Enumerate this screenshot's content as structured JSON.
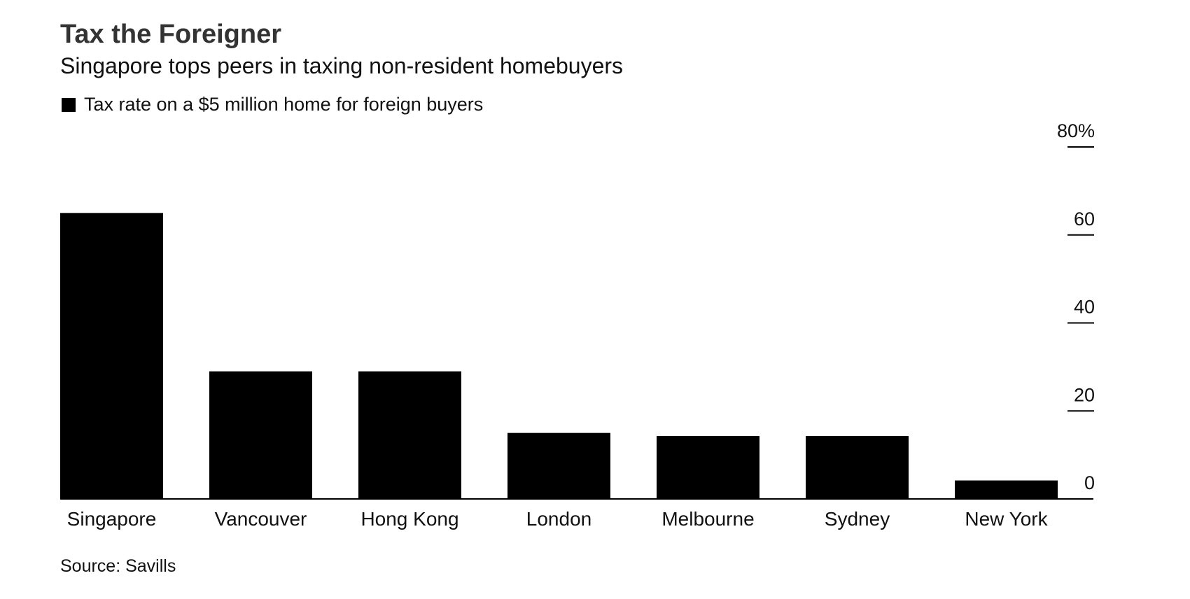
{
  "chart_data": {
    "type": "bar",
    "title": "Tax the Foreigner",
    "subtitle": "Singapore tops peers in taxing non-resident homebuyers",
    "legend": [
      {
        "name": "Tax rate on a $5 million home for foreign buyers",
        "color": "#000000"
      }
    ],
    "categories": [
      "Singapore",
      "Vancouver",
      "Hong Kong",
      "London",
      "Melbourne",
      "Sydney",
      "New York"
    ],
    "series": [
      {
        "name": "Tax rate on a $5 million home for foreign buyers",
        "values": [
          65,
          29,
          29,
          15,
          14.3,
          14.3,
          4.2
        ]
      }
    ],
    "xlabel": "",
    "ylabel": "",
    "ylim": [
      0,
      80
    ],
    "yticks": [
      0,
      20,
      40,
      60,
      80
    ],
    "ytick_labels": [
      "0",
      "20",
      "40",
      "60",
      "80%"
    ],
    "y_axis_side": "right",
    "grid": false,
    "legend_position": "top-left",
    "bar_color": "#000000",
    "source": "Source: Savills"
  }
}
